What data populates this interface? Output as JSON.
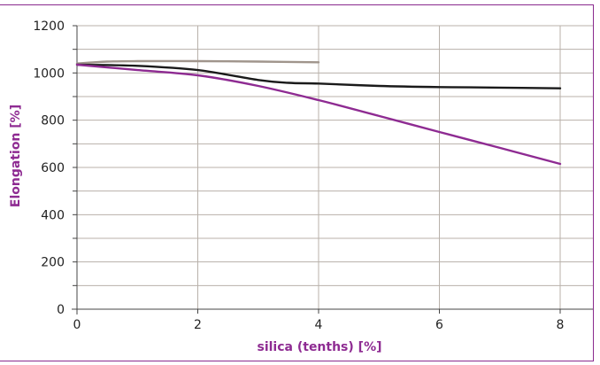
{
  "chart_data": {
    "type": "line",
    "title": "",
    "xlabel": "silica (tenths) [%]",
    "ylabel": "Elongation [%]",
    "xlim": [
      0,
      8
    ],
    "ylim": [
      0,
      1200
    ],
    "x_ticks": [
      0,
      2,
      4,
      6,
      8
    ],
    "y_ticks": [
      0,
      200,
      400,
      600,
      800,
      1000,
      1200
    ],
    "y_minor_step": 100,
    "grid": true,
    "legend": "none",
    "series": [
      {
        "color": "#a0958c",
        "points": [
          [
            0,
            1040
          ],
          [
            0.5,
            1048
          ],
          [
            1,
            1050
          ],
          [
            2,
            1050
          ],
          [
            3,
            1048
          ],
          [
            4,
            1045
          ]
        ]
      },
      {
        "color": "#1a1a1a",
        "points": [
          [
            0,
            1035
          ],
          [
            1,
            1030
          ],
          [
            2,
            1012
          ],
          [
            3,
            970
          ],
          [
            3.5,
            958
          ],
          [
            4,
            955
          ],
          [
            5,
            945
          ],
          [
            6,
            940
          ],
          [
            7,
            938
          ],
          [
            8,
            935
          ]
        ]
      },
      {
        "color": "#8e2b92",
        "points": [
          [
            0,
            1035
          ],
          [
            1,
            1012
          ],
          [
            2,
            990
          ],
          [
            3,
            945
          ],
          [
            4,
            885
          ],
          [
            5,
            818
          ],
          [
            6,
            750
          ],
          [
            7,
            683
          ],
          [
            8,
            615
          ]
        ]
      }
    ]
  }
}
